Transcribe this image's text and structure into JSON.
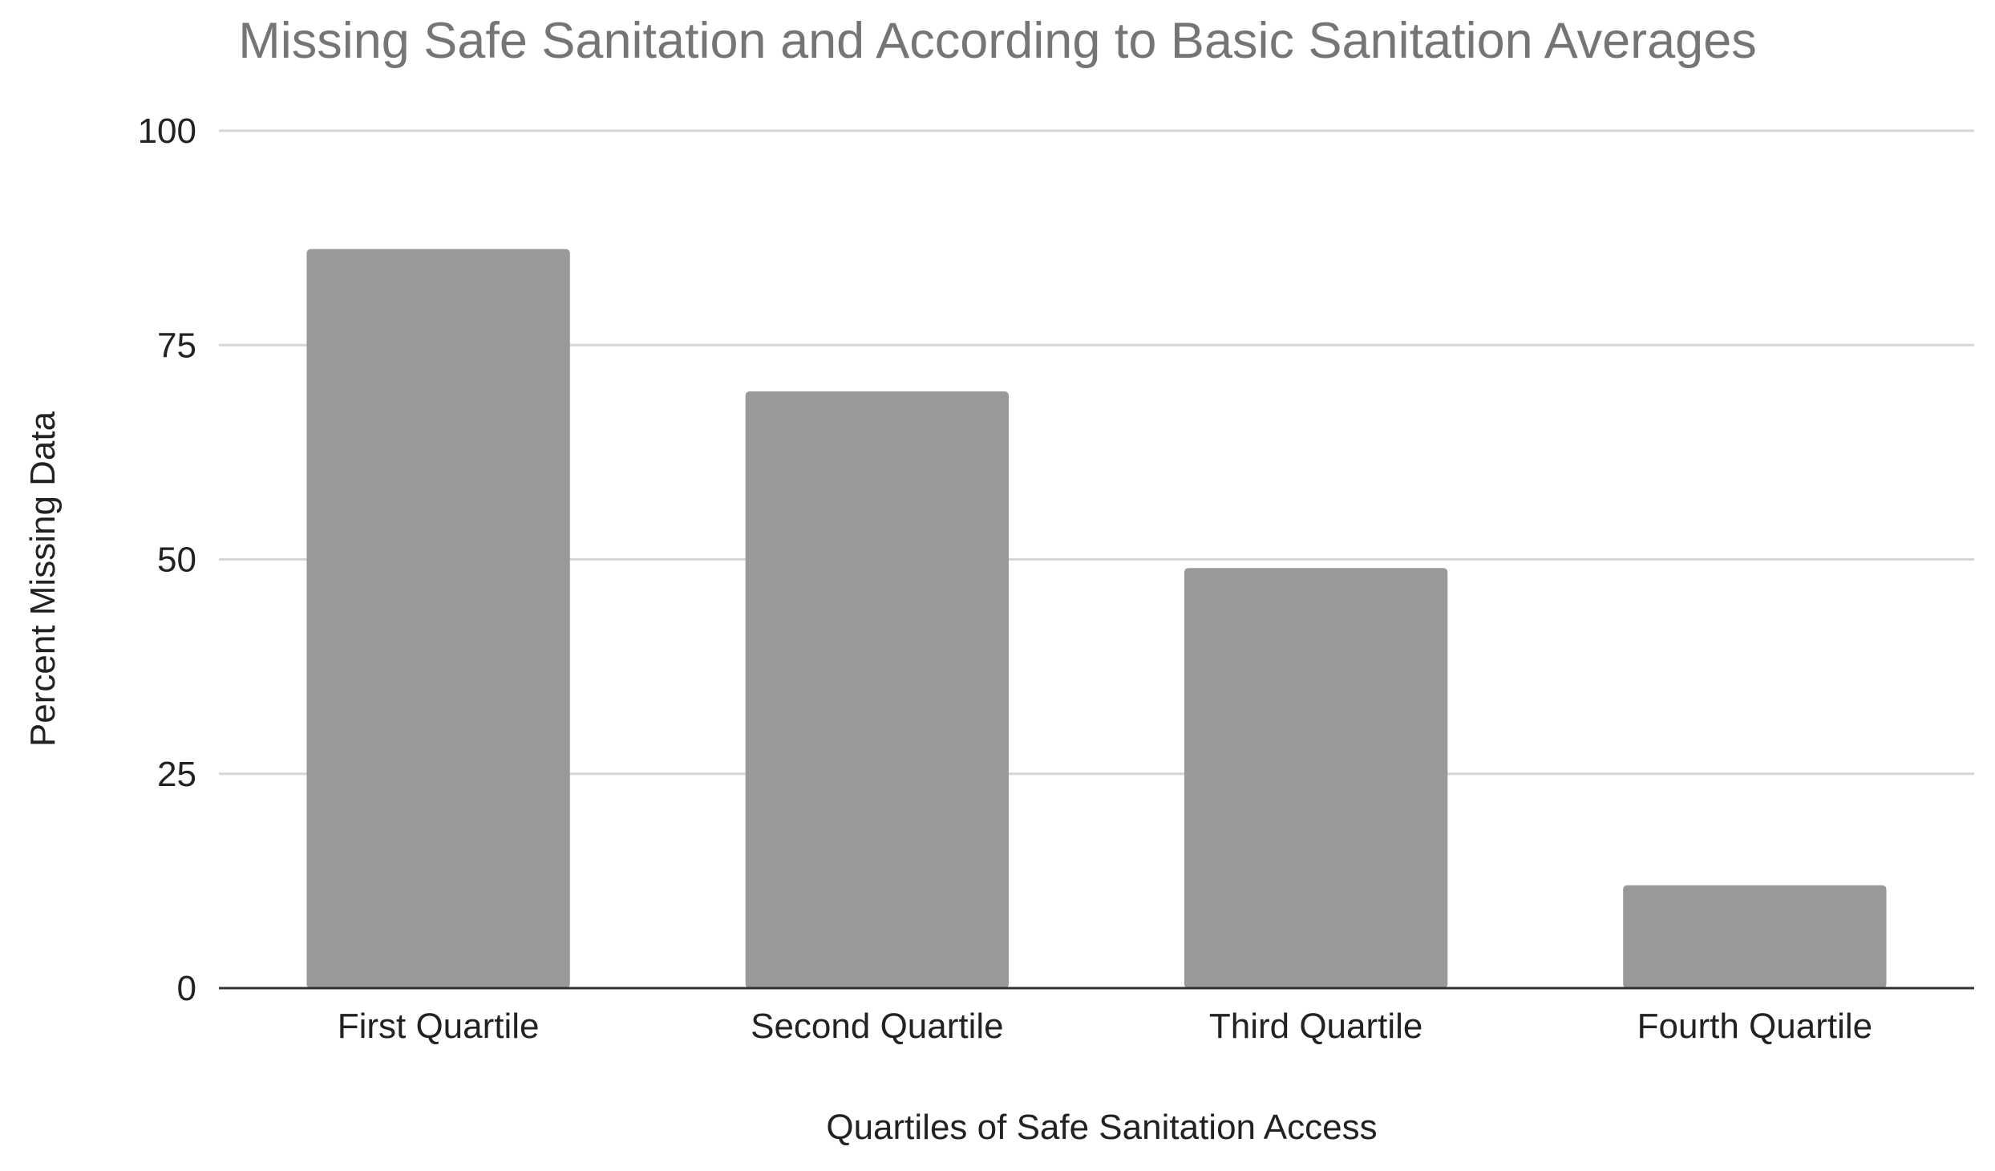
{
  "chart_data": {
    "type": "bar",
    "title": "Missing Safe Sanitation and According to Basic Sanitation Averages",
    "xlabel": "Quartiles of Safe Sanitation Access",
    "ylabel": "Percent Missing Data",
    "categories": [
      "First Quartile",
      "Second Quartile",
      "Third Quartile",
      "Fourth Quartile"
    ],
    "values": [
      86.2,
      69.6,
      49.0,
      12.0
    ],
    "ylim": [
      0,
      100
    ],
    "yticks": [
      0,
      25,
      50,
      75,
      100
    ],
    "ytick_labels": [
      "0",
      "25",
      "50",
      "75",
      "100"
    ],
    "grid": true,
    "legend": "none",
    "colors": {
      "bar": "#999999",
      "title": "#757575",
      "gridline": "#d6d6d6",
      "baseline": "#333333",
      "text": "#222222"
    }
  }
}
